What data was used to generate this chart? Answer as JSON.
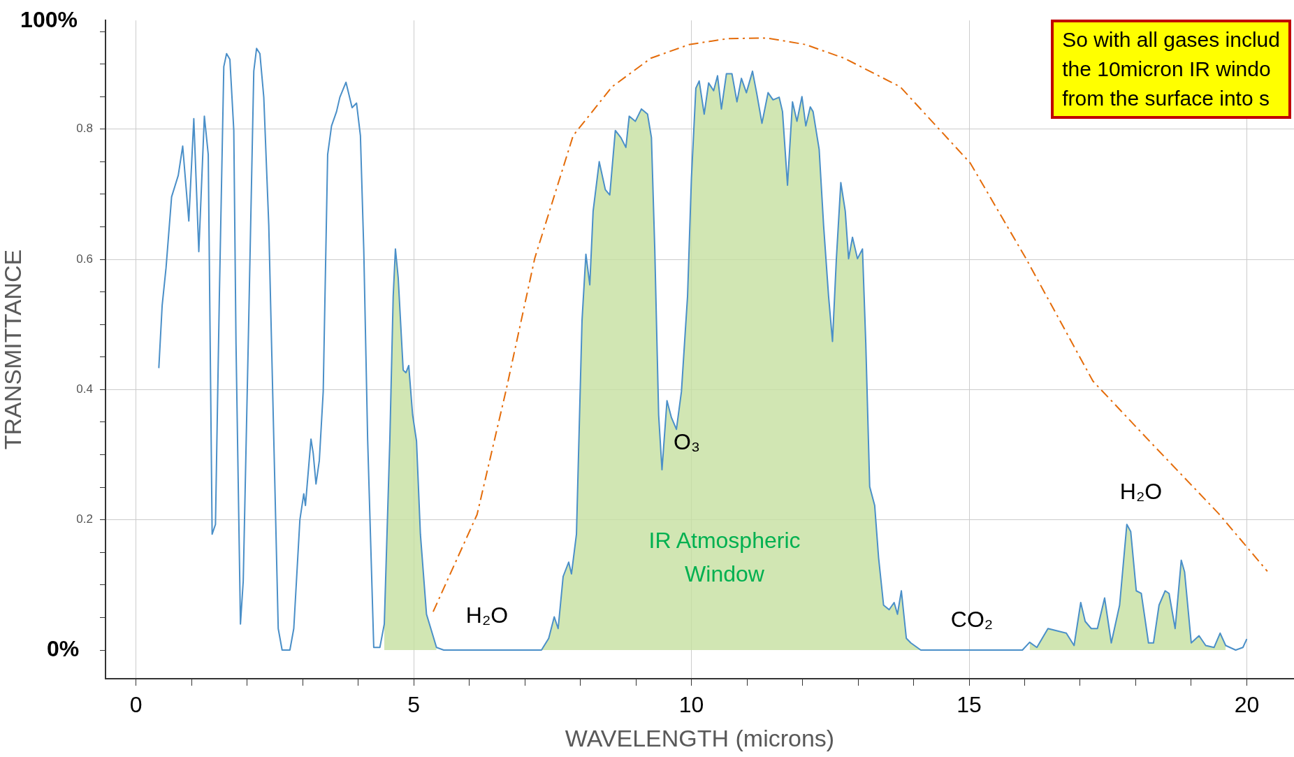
{
  "chart_data": {
    "type": "line",
    "xlabel": "WAVELENGTH (microns)",
    "ylabel": "TRANSMITTANCE",
    "xlim": [
      -0.55,
      20.85
    ],
    "ylim": [
      -0.044,
      0.967
    ],
    "xticks": [
      0,
      {
        "value": 1,
        "label": null
      },
      {
        "value": 2,
        "label": null
      },
      {
        "value": 3,
        "label": null
      },
      {
        "value": 4,
        "label": null
      },
      5,
      {
        "value": 6,
        "label": null
      },
      {
        "value": 7,
        "label": null
      },
      {
        "value": 8,
        "label": null
      },
      {
        "value": 9,
        "label": null
      },
      10,
      {
        "value": 11,
        "label": null
      },
      {
        "value": 12,
        "label": null
      },
      {
        "value": 13,
        "label": null
      },
      {
        "value": 14,
        "label": null
      },
      15,
      {
        "value": 16,
        "label": null
      },
      {
        "value": 17,
        "label": null
      },
      {
        "value": 18,
        "label": null
      },
      {
        "value": 19,
        "label": null
      },
      20
    ],
    "yticks": [
      {
        "value": 0,
        "label": null
      },
      {
        "value": 0.05,
        "label": null
      },
      {
        "value": 0.1,
        "label": null
      },
      {
        "value": 0.15,
        "label": null
      },
      0.2,
      {
        "value": 0.25,
        "label": null
      },
      {
        "value": 0.3,
        "label": null
      },
      {
        "value": 0.35,
        "label": null
      },
      0.4,
      {
        "value": 0.45,
        "label": null
      },
      {
        "value": 0.5,
        "label": null
      },
      {
        "value": 0.55,
        "label": null
      },
      0.6,
      {
        "value": 0.65,
        "label": null
      },
      {
        "value": 0.7,
        "label": null
      },
      {
        "value": 0.75,
        "label": null
      },
      0.8,
      {
        "value": 0.85,
        "label": null
      },
      {
        "value": 0.9,
        "label": null
      },
      {
        "value": 0.95,
        "label": null
      }
    ],
    "grid": true,
    "legend": false,
    "marker": "none",
    "series": [
      {
        "type": "area",
        "color": "#c5e0a0",
        "x": [
          4.47,
          4.57,
          4.63,
          4.67,
          4.72,
          4.81,
          4.86,
          4.91,
          4.98,
          5.05,
          5.12,
          5.23,
          5.41,
          6.3,
          7.3,
          7.43,
          7.53,
          7.6,
          7.69,
          7.79,
          7.84,
          7.93,
          8.03,
          8.1,
          8.17,
          8.23,
          8.34,
          8.45,
          8.53,
          8.63,
          8.73,
          8.82,
          8.88,
          8.99,
          9.1,
          9.21,
          9.28,
          9.34,
          9.41,
          9.47,
          9.56,
          9.64,
          9.73,
          9.82,
          9.93,
          10.0,
          10.08,
          10.14,
          10.23,
          10.31,
          10.4,
          10.47,
          10.54,
          10.63,
          10.73,
          10.82,
          10.9,
          10.99,
          11.1,
          11.18,
          11.27,
          11.38,
          11.47,
          11.58,
          11.64,
          11.73,
          11.82,
          11.9,
          11.99,
          12.06,
          12.14,
          12.19,
          12.3,
          12.38,
          12.47,
          12.54,
          12.61,
          12.69,
          12.77,
          12.83,
          12.9,
          12.99,
          13.08,
          13.14,
          13.21,
          13.3,
          13.37,
          13.46,
          13.56,
          13.65,
          13.71,
          13.78,
          13.87,
          13.95,
          14.13,
          15.0,
          16.09,
          16.22,
          16.42,
          16.61,
          16.75,
          16.89,
          17.01,
          17.09,
          17.2,
          17.31,
          17.44,
          17.56,
          17.71,
          17.84,
          17.91,
          18.01,
          18.1,
          18.23,
          18.32,
          18.42,
          18.53,
          18.6,
          18.71,
          18.82,
          18.88,
          19.0,
          19.14,
          19.26,
          19.41,
          19.52,
          19.62
        ],
        "values": [
          0.04,
          0.324,
          0.543,
          0.616,
          0.572,
          0.43,
          0.426,
          0.437,
          0.361,
          0.321,
          0.178,
          0.055,
          0.004,
          null,
          0,
          0.018,
          0.051,
          0.033,
          0.113,
          0.135,
          0.117,
          0.178,
          0.506,
          0.608,
          0.561,
          0.674,
          0.75,
          0.707,
          0.699,
          0.798,
          0.787,
          0.772,
          0.82,
          0.812,
          0.831,
          0.823,
          0.787,
          0.616,
          0.361,
          0.277,
          0.383,
          0.357,
          0.339,
          0.397,
          0.543,
          0.725,
          0.863,
          0.874,
          0.823,
          0.871,
          0.859,
          0.882,
          0.831,
          0.885,
          0.885,
          0.842,
          0.878,
          0.856,
          0.889,
          0.853,
          0.809,
          0.856,
          0.845,
          0.849,
          0.827,
          0.714,
          0.842,
          0.812,
          0.85,
          0.805,
          0.834,
          0.827,
          0.769,
          0.652,
          0.543,
          0.474,
          0.601,
          0.718,
          0.674,
          0.601,
          0.634,
          0.601,
          0.616,
          0.47,
          0.251,
          0.222,
          0.142,
          0.069,
          0.062,
          0.073,
          0.055,
          0.091,
          0.018,
          0.011,
          0,
          null,
          0.012,
          0.004,
          0.033,
          0.029,
          0.026,
          0.007,
          0.073,
          0.044,
          0.033,
          0.033,
          0.08,
          0.011,
          0.069,
          0.193,
          0.182,
          0.091,
          0.087,
          0.011,
          0.011,
          0.069,
          0.091,
          0.087,
          0.033,
          0.138,
          0.12,
          0.011,
          0.022,
          0.007,
          0.004,
          0.026,
          0.007
        ]
      },
      {
        "color": "#4a8fc8",
        "x": [
          0.41,
          0.47,
          0.54,
          0.64,
          0.76,
          0.84,
          0.95,
          1.04,
          1.13,
          1.23,
          1.3,
          1.37,
          1.43,
          1.5,
          1.58,
          1.63,
          1.69,
          1.76,
          1.8,
          1.88,
          1.93,
          2.02,
          2.12,
          2.17,
          2.23,
          2.3,
          2.39,
          2.48,
          2.56,
          2.63,
          2.77,
          2.84,
          2.95,
          3.02,
          3.05,
          3.15,
          3.19,
          3.24,
          3.3,
          3.37,
          3.45,
          3.52,
          3.61,
          3.67,
          3.78,
          3.89,
          3.97,
          4.04,
          4.1,
          4.17,
          4.28,
          4.39,
          4.47,
          4.57,
          4.63,
          4.67,
          4.72,
          4.81,
          4.86,
          4.91,
          4.98,
          5.05,
          5.12,
          5.23,
          5.41,
          5.54,
          7.3,
          7.43,
          7.53,
          7.6,
          7.69,
          7.79,
          7.84,
          7.93,
          8.03,
          8.1,
          8.17,
          8.23,
          8.34,
          8.45,
          8.53,
          8.63,
          8.73,
          8.82,
          8.88,
          8.99,
          9.1,
          9.21,
          9.28,
          9.34,
          9.41,
          9.47,
          9.56,
          9.64,
          9.73,
          9.82,
          9.93,
          10.0,
          10.08,
          10.14,
          10.23,
          10.31,
          10.4,
          10.47,
          10.54,
          10.63,
          10.73,
          10.82,
          10.9,
          10.99,
          11.1,
          11.18,
          11.27,
          11.38,
          11.47,
          11.58,
          11.64,
          11.73,
          11.82,
          11.9,
          11.99,
          12.06,
          12.14,
          12.19,
          12.3,
          12.38,
          12.47,
          12.54,
          12.61,
          12.69,
          12.77,
          12.83,
          12.9,
          12.99,
          13.08,
          13.14,
          13.21,
          13.3,
          13.37,
          13.46,
          13.56,
          13.65,
          13.71,
          13.78,
          13.87,
          13.95,
          14.13,
          15.96,
          16.09,
          16.22,
          16.42,
          16.61,
          16.75,
          16.89,
          17.01,
          17.09,
          17.2,
          17.31,
          17.44,
          17.56,
          17.71,
          17.84,
          17.91,
          18.01,
          18.1,
          18.23,
          18.32,
          18.42,
          18.53,
          18.6,
          18.71,
          18.82,
          18.88,
          19.0,
          19.14,
          19.26,
          19.41,
          19.52,
          19.62,
          19.8,
          19.93,
          20.0
        ],
        "values": [
          0.433,
          0.529,
          0.587,
          0.696,
          0.729,
          0.774,
          0.659,
          0.816,
          0.612,
          0.82,
          0.761,
          0.178,
          0.193,
          0.543,
          0.896,
          0.916,
          0.907,
          0.798,
          0.47,
          0.04,
          0.106,
          0.47,
          0.889,
          0.924,
          0.916,
          0.849,
          0.652,
          0.324,
          0.033,
          0,
          0,
          0.033,
          0.2,
          0.24,
          0.222,
          0.324,
          0.302,
          0.255,
          0.291,
          0.397,
          0.761,
          0.805,
          0.827,
          0.849,
          0.872,
          0.833,
          0.84,
          0.79,
          0.616,
          0.324,
          0.004,
          0.004,
          0.04,
          0.324,
          0.543,
          0.616,
          0.572,
          0.43,
          0.426,
          0.437,
          0.361,
          0.321,
          0.178,
          0.055,
          0.004,
          0,
          0,
          0.018,
          0.051,
          0.033,
          0.113,
          0.135,
          0.117,
          0.178,
          0.506,
          0.608,
          0.561,
          0.674,
          0.75,
          0.707,
          0.699,
          0.798,
          0.787,
          0.772,
          0.82,
          0.812,
          0.831,
          0.823,
          0.787,
          0.616,
          0.361,
          0.277,
          0.383,
          0.357,
          0.339,
          0.397,
          0.543,
          0.725,
          0.863,
          0.874,
          0.823,
          0.871,
          0.859,
          0.882,
          0.831,
          0.885,
          0.885,
          0.842,
          0.878,
          0.856,
          0.889,
          0.853,
          0.809,
          0.856,
          0.845,
          0.849,
          0.827,
          0.714,
          0.842,
          0.812,
          0.85,
          0.805,
          0.834,
          0.827,
          0.769,
          0.652,
          0.543,
          0.474,
          0.601,
          0.718,
          0.674,
          0.601,
          0.634,
          0.601,
          0.616,
          0.47,
          0.251,
          0.222,
          0.142,
          0.069,
          0.062,
          0.073,
          0.055,
          0.091,
          0.018,
          0.011,
          0,
          0,
          0.012,
          0.004,
          0.033,
          0.029,
          0.026,
          0.007,
          0.073,
          0.044,
          0.033,
          0.033,
          0.08,
          0.011,
          0.069,
          0.193,
          0.182,
          0.091,
          0.087,
          0.011,
          0.011,
          0.069,
          0.091,
          0.087,
          0.033,
          0.138,
          0.12,
          0.011,
          0.022,
          0.007,
          0.004,
          0.026,
          0.007,
          0,
          0.004,
          0.017
        ]
      },
      {
        "color": "#e46c0a",
        "line_style": "dashed",
        "x": [
          5.35,
          6.14,
          6.66,
          7.18,
          7.87,
          8.57,
          9.27,
          9.96,
          10.65,
          11.35,
          12.05,
          12.75,
          13.76,
          15.02,
          16.02,
          17.23,
          18.28,
          19.5,
          20.37
        ],
        "values": [
          0.059,
          0.208,
          0.398,
          0.602,
          0.79,
          0.865,
          0.909,
          0.93,
          0.939,
          0.94,
          0.93,
          0.909,
          0.865,
          0.748,
          0.602,
          0.413,
          0.318,
          0.209,
          0.121
        ]
      }
    ],
    "annotations": [
      "100%",
      "0%",
      "H₂O",
      "O₃",
      "IR Atmospheric Window",
      "CO₂",
      "H₂O",
      "So with all gases includ\nthe 10micron IR windo\nfrom the surface into s"
    ]
  }
}
